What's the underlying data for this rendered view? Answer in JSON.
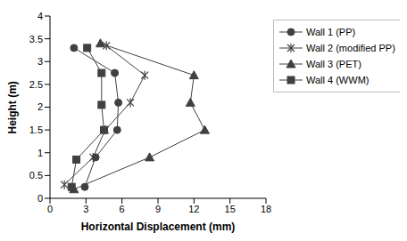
{
  "chart_data": {
    "type": "scatter",
    "xlabel": "Horizontal Displacement (mm)",
    "ylabel": "Height (m)",
    "xlim": [
      0,
      18
    ],
    "xticks": [
      0,
      3,
      6,
      9,
      12,
      15,
      18
    ],
    "ylim": [
      0,
      4
    ],
    "yticks": [
      0,
      0.5,
      1,
      1.5,
      2,
      2.5,
      3,
      3.5,
      4
    ],
    "grid": false,
    "legend": "right",
    "series": [
      {
        "name": "Wall 1 (PP)",
        "color": "#404040",
        "marker": "circle",
        "line_style": "solid",
        "x": [
          2.9,
          3.8,
          5.6,
          5.7,
          5.4,
          2.0
        ],
        "y": [
          0.25,
          0.9,
          1.5,
          2.1,
          2.75,
          3.3
        ]
      },
      {
        "name": "Wall 2 (modified PP)",
        "color": "#404040",
        "marker": "asterisk",
        "line_style": "solid",
        "x": [
          1.2,
          3.6,
          4.6,
          6.7,
          7.9,
          4.7
        ],
        "y": [
          0.3,
          0.9,
          1.5,
          2.1,
          2.7,
          3.35
        ]
      },
      {
        "name": "Wall 3 (PET)",
        "color": "#404040",
        "marker": "triangle",
        "line_style": "solid",
        "x": [
          2.0,
          8.3,
          12.9,
          11.7,
          12.0,
          4.2
        ],
        "y": [
          0.2,
          0.9,
          1.5,
          2.1,
          2.7,
          3.4
        ]
      },
      {
        "name": "Wall 4 (WWM)",
        "color": "#404040",
        "marker": "square",
        "line_style": "solid",
        "x": [
          1.8,
          2.2,
          4.5,
          4.3,
          4.3,
          3.1
        ],
        "y": [
          0.25,
          0.85,
          1.5,
          2.05,
          2.75,
          3.3
        ]
      }
    ]
  }
}
